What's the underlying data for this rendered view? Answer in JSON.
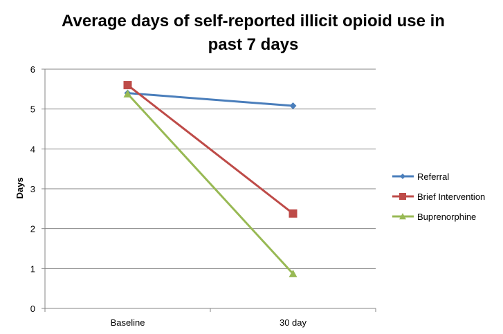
{
  "chart_data": {
    "type": "line",
    "title_line1": "Average days of self-reported illicit opioid use in",
    "title_line2": "past 7 days",
    "xlabel": "",
    "ylabel": "Days",
    "categories": [
      "Baseline",
      "30 day"
    ],
    "ylim": [
      0,
      6
    ],
    "yticks": [
      "0",
      "1",
      "2",
      "3",
      "4",
      "5",
      "6"
    ],
    "grid": true,
    "legend_position": "right",
    "series": [
      {
        "name": "Referral",
        "values": [
          5.4,
          5.08
        ],
        "color": "#4a7ebb",
        "marker": "diamond"
      },
      {
        "name": "Brief Intervention",
        "values": [
          5.6,
          2.38
        ],
        "color": "#be4b48",
        "marker": "square"
      },
      {
        "name": "Buprenorphine",
        "values": [
          5.38,
          0.87
        ],
        "color": "#98b954",
        "marker": "triangle"
      }
    ]
  }
}
